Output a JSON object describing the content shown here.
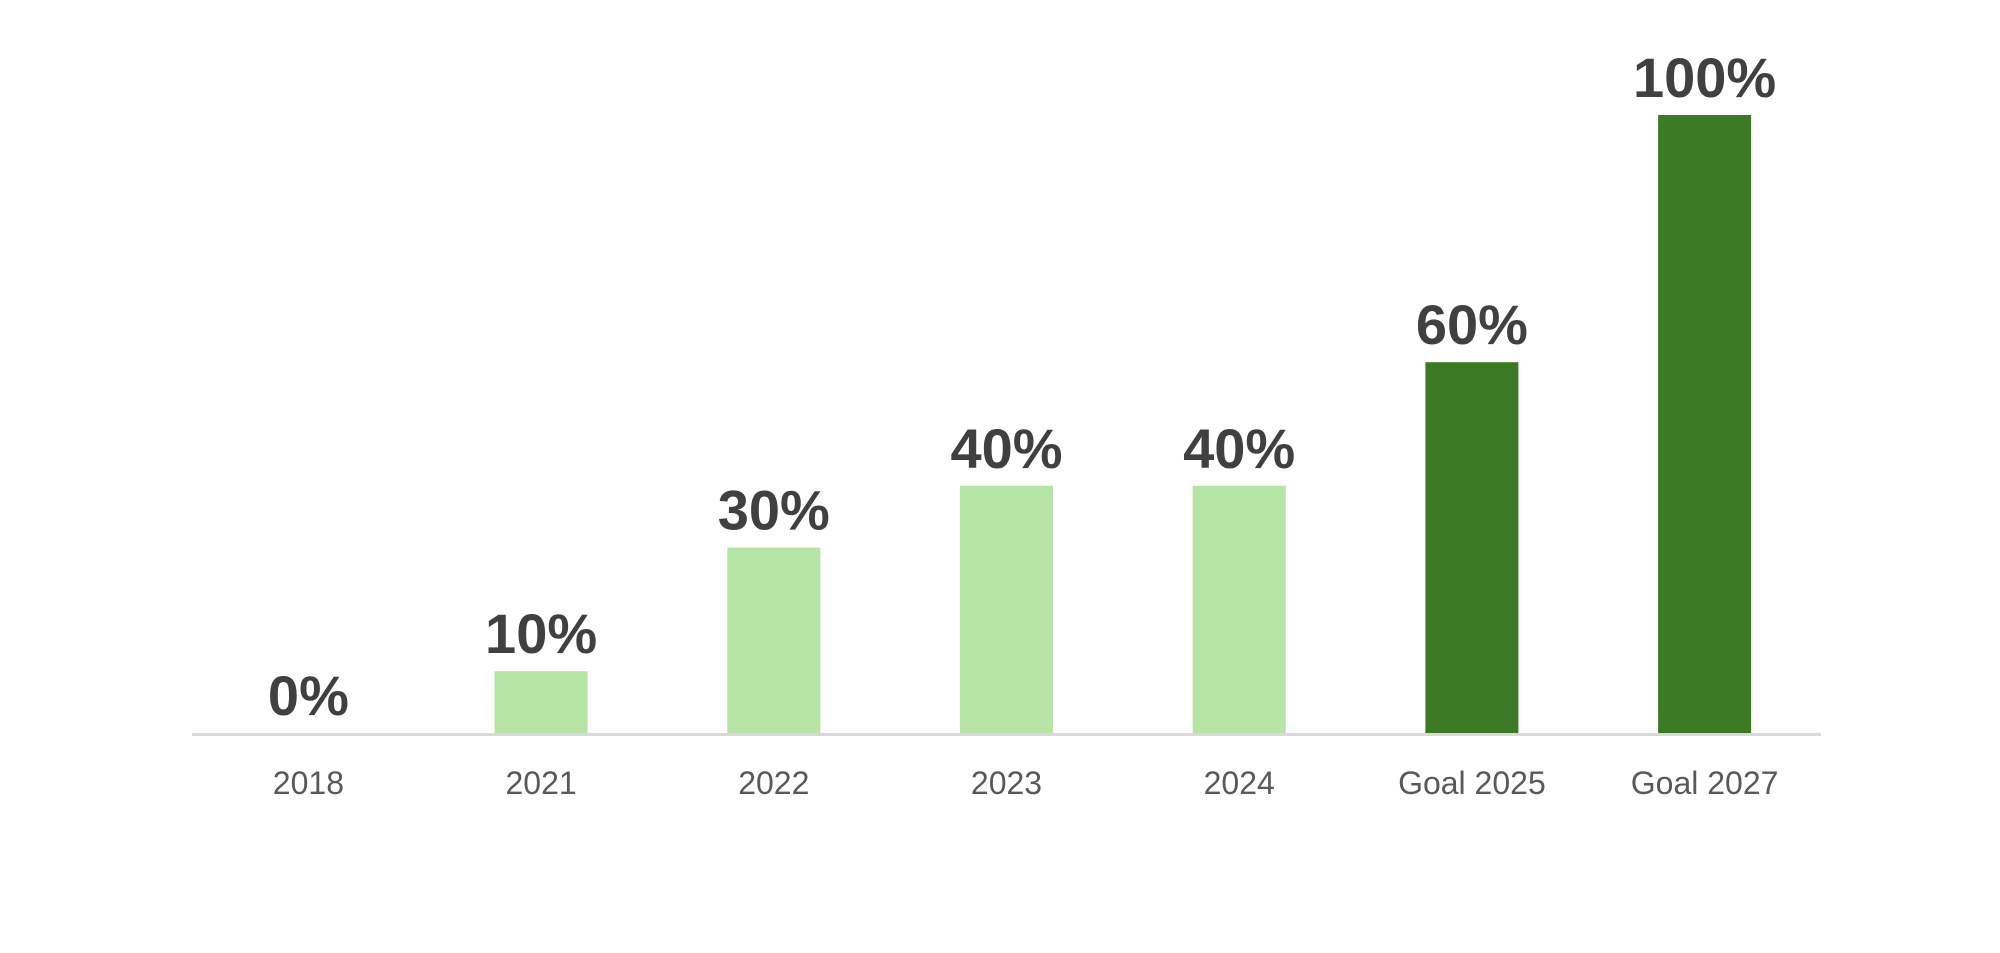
{
  "chart_data": {
    "type": "bar",
    "title": "",
    "xlabel": "",
    "ylabel": "",
    "categories": [
      "2018",
      "2021",
      "2022",
      "2023",
      "2024",
      "Goal 2025",
      "Goal 2027"
    ],
    "values": [
      0,
      10,
      30,
      40,
      40,
      60,
      100
    ],
    "value_labels": [
      "0%",
      "10%",
      "30%",
      "40%",
      "40%",
      "60%",
      "100%"
    ],
    "unit": "%",
    "ylim": [
      0,
      100
    ],
    "grid": false,
    "legend": "none",
    "colors": {
      "actual": "#B5E4A4",
      "goal": "#3B7A23",
      "axis": "#D9D9D9",
      "data_label": "#404040",
      "tick_label": "#595959"
    },
    "bar_kinds": [
      "actual",
      "actual",
      "actual",
      "actual",
      "actual",
      "goal",
      "goal"
    ]
  }
}
